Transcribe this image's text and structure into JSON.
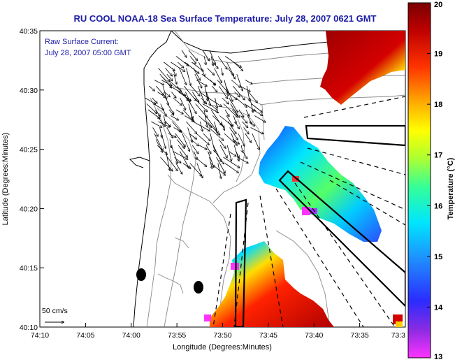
{
  "title": "RU COOL  NOAA-18  Sea Surface Temperature:  July 28, 2007 0621 GMT",
  "current_legend": {
    "line1": "Raw Surface Current:",
    "line2": "July 28, 2007 05:00 GMT"
  },
  "scale_label": "50 cm/s",
  "axes": {
    "xlabel": "Longitude (Degrees:Minutes)",
    "ylabel": "Latitude (Degrees:Minutes)",
    "xticks": [
      "74:10",
      "74:05",
      "74:00",
      "73:55",
      "73:50",
      "73:45",
      "73:40",
      "73:35",
      "73:3"
    ],
    "yticks": [
      "40:35",
      "40:30",
      "40:25",
      "40:20",
      "40:15",
      "40:10"
    ]
  },
  "colorbar": {
    "label": "Temperature (°C)",
    "min": 13,
    "max": 20,
    "ticks": [
      "20",
      "19",
      "18",
      "17",
      "16",
      "15",
      "14",
      "13"
    ]
  }
}
